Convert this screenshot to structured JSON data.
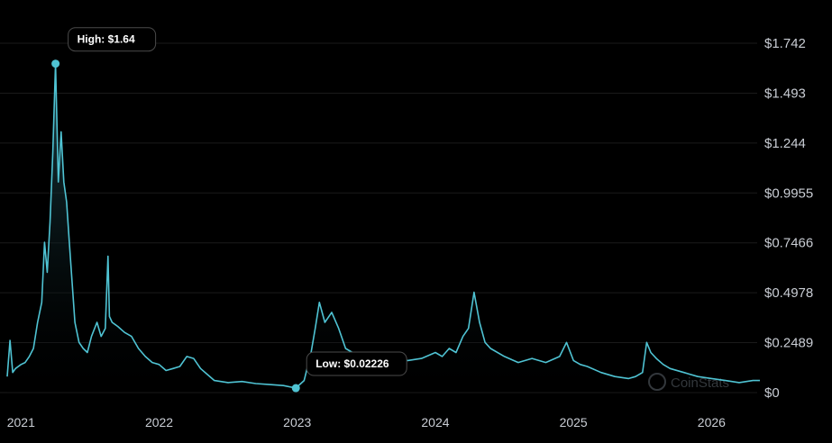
{
  "chart_data": {
    "type": "area",
    "y_ticks": [
      "$1.742",
      "$1.493",
      "$1.244",
      "$0.9955",
      "$0.7466",
      "$0.4978",
      "$0.2489",
      "$0"
    ],
    "y_tick_values": [
      1.742,
      1.493,
      1.244,
      0.9955,
      0.7466,
      0.4978,
      0.2489,
      0
    ],
    "ylim": [
      0,
      1.742
    ],
    "x_ticks": [
      "2021",
      "2022",
      "2023",
      "2024",
      "2025",
      "2026"
    ],
    "x_tick_values": [
      2021.0,
      2022.0,
      2023.0,
      2024.0,
      2025.0,
      2026.0
    ],
    "xlim": [
      2020.9,
      2026.35
    ],
    "grid": true,
    "colors": {
      "line": "#4fc3d3",
      "fill_top": "#1f4a52",
      "fill_bottom": "#000000",
      "grid": "#1a1a1a",
      "callout_border": "#4a4a4a"
    },
    "annotations": {
      "high": {
        "label": "High: $1.64",
        "x": 2021.25,
        "y": 1.64
      },
      "low": {
        "label": "Low: $0.02226",
        "x": 2022.99,
        "y": 0.02226
      }
    },
    "watermark": "CoinStats",
    "x": [
      2020.9,
      2020.92,
      2020.94,
      2020.96,
      2020.98,
      2021.0,
      2021.03,
      2021.06,
      2021.09,
      2021.12,
      2021.15,
      2021.17,
      2021.19,
      2021.21,
      2021.23,
      2021.25,
      2021.27,
      2021.29,
      2021.31,
      2021.33,
      2021.35,
      2021.37,
      2021.39,
      2021.42,
      2021.45,
      2021.48,
      2021.51,
      2021.55,
      2021.58,
      2021.61,
      2021.63,
      2021.64,
      2021.66,
      2021.7,
      2021.75,
      2021.8,
      2021.85,
      2021.9,
      2021.95,
      2022.0,
      2022.05,
      2022.1,
      2022.15,
      2022.2,
      2022.25,
      2022.3,
      2022.35,
      2022.4,
      2022.5,
      2022.6,
      2022.7,
      2022.8,
      2022.9,
      2022.99,
      2023.05,
      2023.1,
      2023.13,
      2023.16,
      2023.2,
      2023.25,
      2023.3,
      2023.35,
      2023.4,
      2023.45,
      2023.5,
      2023.6,
      2023.7,
      2023.8,
      2023.9,
      2024.0,
      2024.05,
      2024.1,
      2024.15,
      2024.2,
      2024.24,
      2024.28,
      2024.32,
      2024.36,
      2024.4,
      2024.5,
      2024.6,
      2024.7,
      2024.8,
      2024.9,
      2024.95,
      2025.0,
      2025.05,
      2025.1,
      2025.2,
      2025.3,
      2025.4,
      2025.45,
      2025.5,
      2025.53,
      2025.56,
      2025.6,
      2025.65,
      2025.7,
      2025.8,
      2025.9,
      2026.0,
      2026.1,
      2026.2,
      2026.3,
      2026.35
    ],
    "y": [
      0.08,
      0.26,
      0.1,
      0.12,
      0.13,
      0.14,
      0.15,
      0.18,
      0.22,
      0.35,
      0.45,
      0.75,
      0.6,
      0.85,
      1.2,
      1.64,
      1.05,
      1.3,
      1.05,
      0.95,
      0.75,
      0.55,
      0.35,
      0.25,
      0.22,
      0.2,
      0.28,
      0.35,
      0.28,
      0.32,
      0.68,
      0.38,
      0.35,
      0.33,
      0.3,
      0.28,
      0.22,
      0.18,
      0.15,
      0.14,
      0.11,
      0.12,
      0.13,
      0.18,
      0.17,
      0.12,
      0.09,
      0.06,
      0.05,
      0.055,
      0.045,
      0.04,
      0.035,
      0.02226,
      0.06,
      0.2,
      0.32,
      0.45,
      0.35,
      0.4,
      0.32,
      0.22,
      0.2,
      0.18,
      0.16,
      0.15,
      0.17,
      0.16,
      0.17,
      0.2,
      0.18,
      0.22,
      0.2,
      0.28,
      0.32,
      0.5,
      0.35,
      0.25,
      0.22,
      0.18,
      0.15,
      0.17,
      0.15,
      0.18,
      0.25,
      0.16,
      0.14,
      0.13,
      0.1,
      0.08,
      0.07,
      0.08,
      0.1,
      0.25,
      0.2,
      0.17,
      0.14,
      0.12,
      0.1,
      0.08,
      0.07,
      0.06,
      0.05,
      0.06,
      0.06
    ]
  }
}
